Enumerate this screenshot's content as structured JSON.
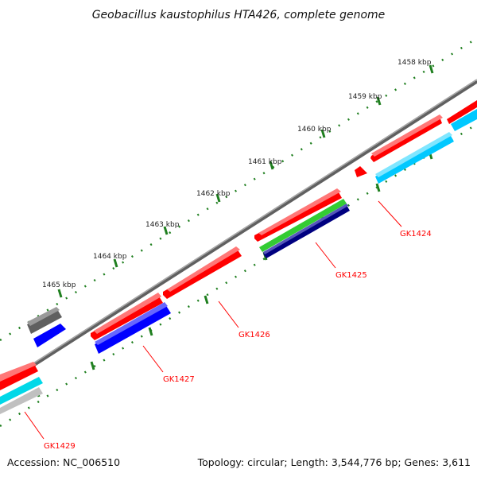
{
  "title": "Geobacillus kaustophilus HTA426, complete genome",
  "footer": {
    "accession": "Accession: NC_006510",
    "summary": "Topology: circular; Length: 3,544,776 bp; Genes: 3,611"
  },
  "colors": {
    "backbone": "#7f7f7f",
    "tick_marks": "#1f7f1f",
    "label_lines": "#ff0000",
    "gene_label_text": "#ff0000"
  },
  "ticks": [
    {
      "label": "1458 kbp"
    },
    {
      "label": "1459 kbp"
    },
    {
      "label": "1460 kbp"
    },
    {
      "label": "1461 kbp"
    },
    {
      "label": "1462 kbp"
    },
    {
      "label": "1463 kbp"
    },
    {
      "label": "1464 kbp"
    },
    {
      "label": "1465 kbp"
    }
  ],
  "gene_labels": [
    {
      "text": "GK1424"
    },
    {
      "text": "GK1425"
    },
    {
      "text": "GK1426"
    },
    {
      "text": "GK1427"
    },
    {
      "text": "GK1429"
    }
  ],
  "feature_colors": {
    "cds": "#ff0000",
    "blue": "#0000ff",
    "cyan": "#00d0ff",
    "green": "#33cc33",
    "navy": "#000080",
    "gray": "#666666",
    "light_gray": "#c0c0c0"
  }
}
